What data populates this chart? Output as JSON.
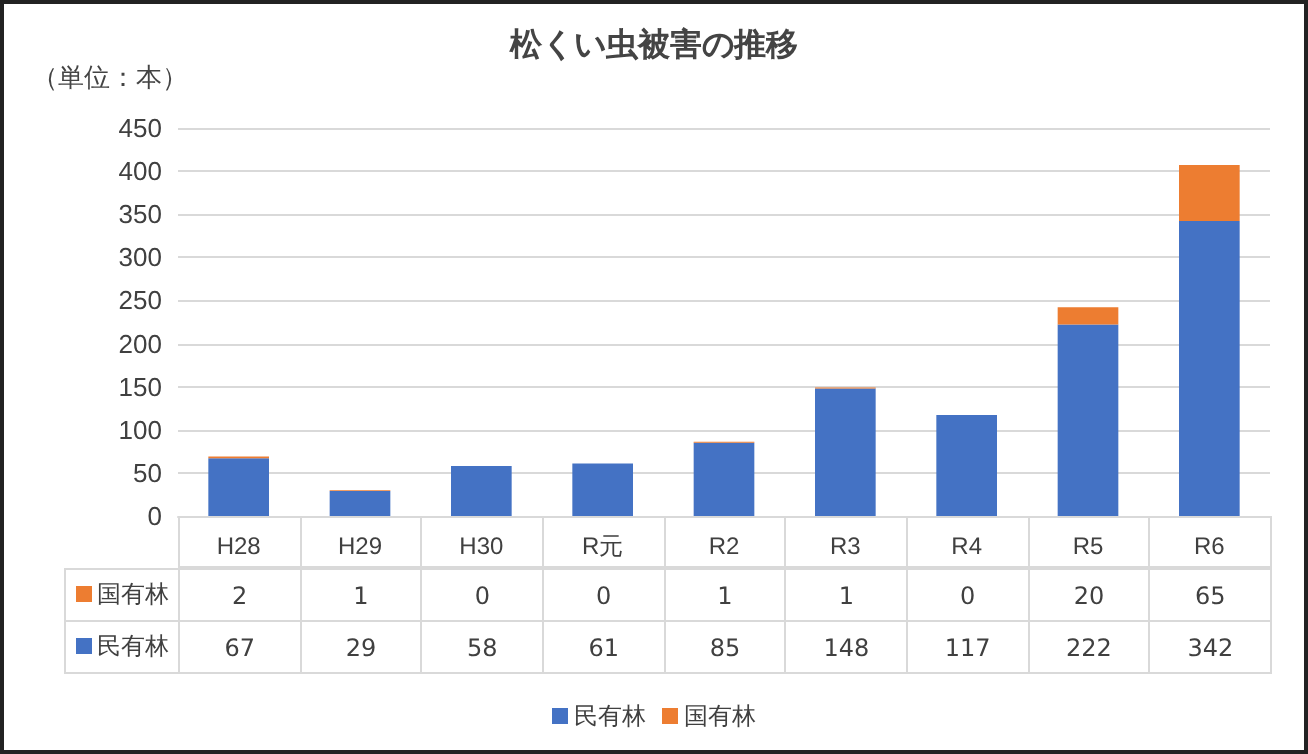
{
  "chart_data": {
    "type": "bar",
    "title": "松くい虫被害の推移",
    "ylabel": "（単位：本）",
    "categories": [
      "H28",
      "H29",
      "H30",
      "R元",
      "R2",
      "R3",
      "R4",
      "R5",
      "R6"
    ],
    "series": [
      {
        "name": "民有林",
        "color": "#4472c4",
        "values": [
          67,
          29,
          58,
          61,
          85,
          148,
          117,
          222,
          342
        ]
      },
      {
        "name": "国有林",
        "color": "#ed7d31",
        "values": [
          2,
          1,
          0,
          0,
          1,
          1,
          0,
          20,
          65
        ]
      }
    ],
    "stacked": true,
    "ylim": [
      0,
      450
    ],
    "yticks": [
      0,
      50,
      100,
      150,
      200,
      250,
      300,
      350,
      400,
      450
    ],
    "grid": "y",
    "legend": "bottom",
    "data_labels": true
  }
}
